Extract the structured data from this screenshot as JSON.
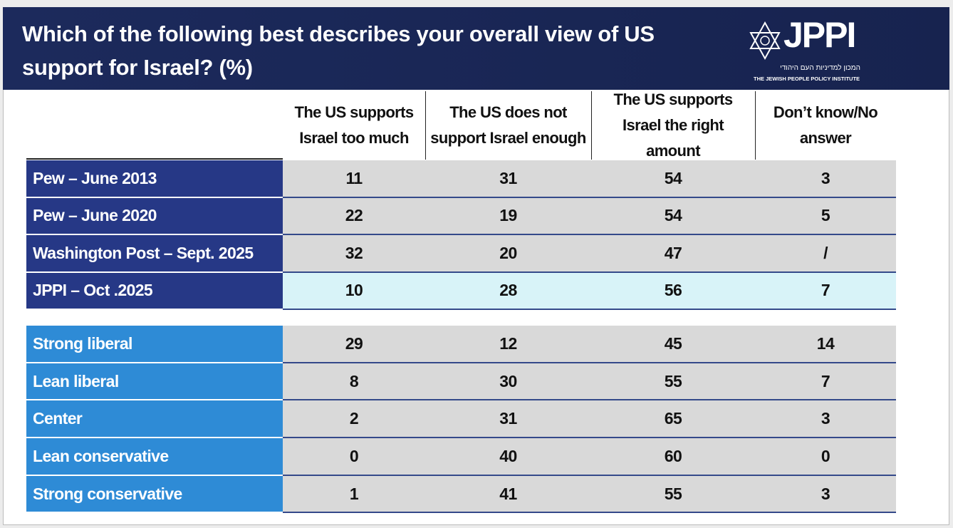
{
  "header": {
    "title": "Which of the following best describes your overall view of US support for Israel? (%)",
    "logo": {
      "name": "JPPI",
      "hebrew": "המכון למדיניות העם היהודי",
      "subtitle": "THE JEWISH PEOPLE POLICY INSTITUTE"
    }
  },
  "table": {
    "columns": [
      "The US supports Israel too much",
      "The US does not support Israel enough",
      "The US supports Israel the right amount",
      "Don’t know/No answer"
    ],
    "groups": [
      {
        "rows": [
          {
            "label": "Pew – June 2013",
            "values": [
              11,
              31,
              54,
              3
            ]
          },
          {
            "label": "Pew – June 2020",
            "values": [
              22,
              19,
              54,
              5
            ]
          },
          {
            "label": "Washington Post – Sept. 2025",
            "values": [
              32,
              20,
              47,
              "/"
            ]
          },
          {
            "label": "JPPI – Oct .2025",
            "values": [
              10,
              28,
              56,
              7
            ]
          }
        ]
      },
      {
        "rows": [
          {
            "label": "Strong liberal",
            "values": [
              29,
              12,
              45,
              14
            ]
          },
          {
            "label": "Lean liberal",
            "values": [
              8,
              30,
              55,
              7
            ]
          },
          {
            "label": "Center",
            "values": [
              2,
              31,
              65,
              3
            ]
          },
          {
            "label": "Lean conservative",
            "values": [
              0,
              40,
              60,
              0
            ]
          },
          {
            "label": "Strong conservative",
            "values": [
              1,
              41,
              55,
              3
            ]
          }
        ]
      }
    ]
  }
}
